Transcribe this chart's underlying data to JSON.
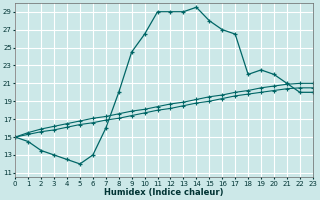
{
  "xlabel": "Humidex (Indice chaleur)",
  "background_color": "#cce8e8",
  "grid_color": "#ffffff",
  "line_color": "#006666",
  "xlim": [
    0,
    23
  ],
  "ylim": [
    10.5,
    30
  ],
  "xticks": [
    0,
    1,
    2,
    3,
    4,
    5,
    6,
    7,
    8,
    9,
    10,
    11,
    12,
    13,
    14,
    15,
    16,
    17,
    18,
    19,
    20,
    21,
    22,
    23
  ],
  "yticks": [
    11,
    13,
    15,
    17,
    19,
    21,
    23,
    25,
    27,
    29
  ],
  "curve1_x": [
    0,
    1,
    2,
    3,
    4,
    5,
    6,
    7,
    8,
    9,
    10,
    11,
    12,
    13,
    14,
    15,
    16,
    17,
    18,
    19,
    20,
    21,
    22,
    23
  ],
  "curve1_y": [
    15,
    14.5,
    13.5,
    13,
    12.5,
    12,
    13,
    16,
    20,
    24.5,
    26.5,
    29,
    29,
    29,
    29.5,
    28,
    27,
    26.5,
    22,
    22.5,
    22,
    21,
    20,
    20
  ],
  "curve2_x": [
    0,
    1,
    2,
    3,
    4,
    5,
    6,
    7,
    8,
    9,
    10,
    11,
    12,
    13,
    14,
    15,
    16,
    17,
    18,
    19,
    20,
    21,
    22,
    23
  ],
  "curve2_y": [
    15,
    15.3,
    15.6,
    15.8,
    16.1,
    16.4,
    16.6,
    16.9,
    17.1,
    17.4,
    17.7,
    18.0,
    18.2,
    18.5,
    18.8,
    19.0,
    19.3,
    19.6,
    19.8,
    20.0,
    20.2,
    20.4,
    20.5,
    20.5
  ],
  "curve3_x": [
    0,
    1,
    2,
    3,
    4,
    5,
    6,
    7,
    8,
    9,
    10,
    11,
    12,
    13,
    14,
    15,
    16,
    17,
    18,
    19,
    20,
    21,
    22,
    23
  ],
  "curve3_y": [
    15,
    15.5,
    15.9,
    16.2,
    16.5,
    16.8,
    17.1,
    17.3,
    17.6,
    17.9,
    18.1,
    18.4,
    18.7,
    18.9,
    19.2,
    19.5,
    19.7,
    20.0,
    20.2,
    20.5,
    20.7,
    20.9,
    21.0,
    21.0
  ]
}
